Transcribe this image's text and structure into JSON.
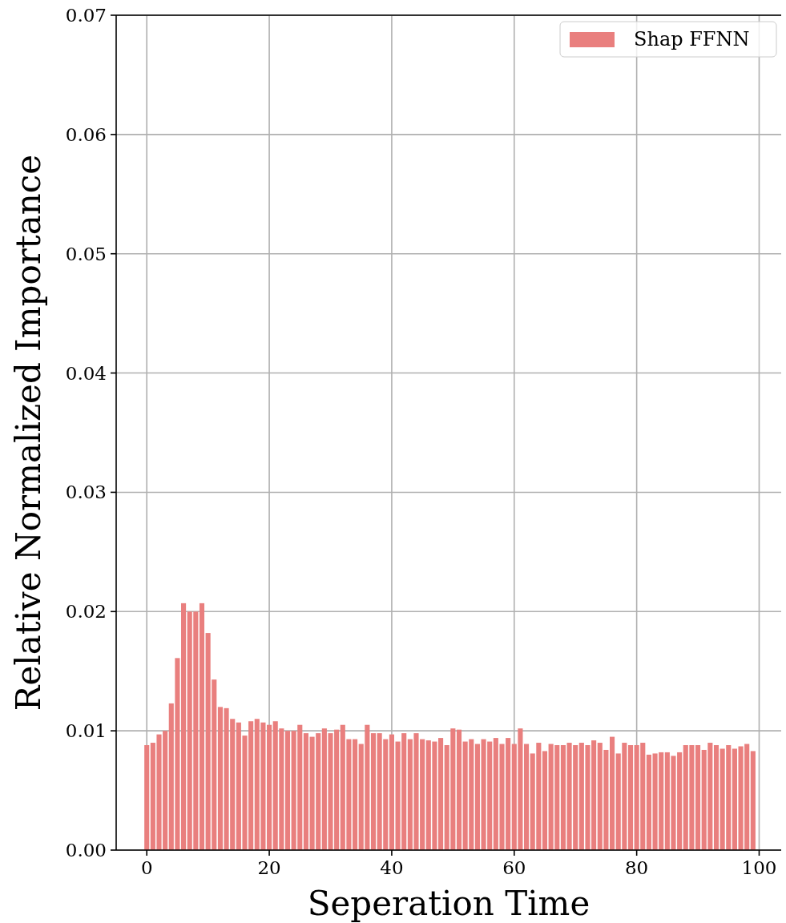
{
  "chart_data": {
    "type": "bar",
    "xlabel": "Seperation Time",
    "ylabel": "Relative Normalized Importance",
    "x": [
      0,
      1,
      2,
      3,
      4,
      5,
      6,
      7,
      8,
      9,
      10,
      11,
      12,
      13,
      14,
      15,
      16,
      17,
      18,
      19,
      20,
      21,
      22,
      23,
      24,
      25,
      26,
      27,
      28,
      29,
      30,
      31,
      32,
      33,
      34,
      35,
      36,
      37,
      38,
      39,
      40,
      41,
      42,
      43,
      44,
      45,
      46,
      47,
      48,
      49,
      50,
      51,
      52,
      53,
      54,
      55,
      56,
      57,
      58,
      59,
      60,
      61,
      62,
      63,
      64,
      65,
      66,
      67,
      68,
      69,
      70,
      71,
      72,
      73,
      74,
      75,
      76,
      77,
      78,
      79,
      80,
      81,
      82,
      83,
      84,
      85,
      86,
      87,
      88,
      89,
      90,
      91,
      92,
      93,
      94,
      95,
      96,
      97,
      98,
      99
    ],
    "series": [
      {
        "name": "Shap FFNN",
        "color": "#e97f7e",
        "values": [
          0.0088,
          0.009,
          0.0097,
          0.01,
          0.0123,
          0.0161,
          0.0207,
          0.02,
          0.02,
          0.0207,
          0.0182,
          0.0143,
          0.012,
          0.0119,
          0.011,
          0.0107,
          0.0096,
          0.0108,
          0.011,
          0.0107,
          0.0105,
          0.0108,
          0.0102,
          0.01,
          0.01,
          0.0105,
          0.0098,
          0.0095,
          0.0098,
          0.0102,
          0.0098,
          0.0101,
          0.0105,
          0.0093,
          0.0093,
          0.0089,
          0.0105,
          0.0098,
          0.0098,
          0.0093,
          0.0097,
          0.0091,
          0.0098,
          0.0093,
          0.0098,
          0.0093,
          0.0092,
          0.0091,
          0.0094,
          0.0088,
          0.0102,
          0.0101,
          0.0091,
          0.0093,
          0.0089,
          0.0093,
          0.0091,
          0.0094,
          0.0089,
          0.0094,
          0.0089,
          0.0102,
          0.0089,
          0.0081,
          0.009,
          0.0083,
          0.0089,
          0.0088,
          0.0088,
          0.009,
          0.0088,
          0.009,
          0.0088,
          0.0092,
          0.009,
          0.0084,
          0.0095,
          0.0081,
          0.009,
          0.0088,
          0.0088,
          0.009,
          0.008,
          0.0081,
          0.0082,
          0.0082,
          0.0079,
          0.0082,
          0.0088,
          0.0088,
          0.0088,
          0.0084,
          0.009,
          0.0088,
          0.0085,
          0.0088,
          0.0085,
          0.0087,
          0.0089,
          0.0083
        ]
      }
    ],
    "xlim": [
      -5,
      103.6
    ],
    "xticks": [
      0,
      20,
      40,
      60,
      80,
      100
    ],
    "ylim": [
      0,
      0.07
    ],
    "yticks": [
      {
        "value": 0,
        "label": "0.00"
      },
      {
        "value": 0.01,
        "label": "0.01"
      },
      {
        "value": 0.02,
        "label": "0.02"
      },
      {
        "value": 0.03,
        "label": "0.03"
      },
      {
        "value": 0.04,
        "label": "0.04"
      },
      {
        "value": 0.05,
        "label": "0.05"
      },
      {
        "value": 0.06,
        "label": "0.06"
      },
      {
        "value": 0.07,
        "label": "0.07"
      }
    ],
    "grid": true,
    "legend": "top right"
  }
}
